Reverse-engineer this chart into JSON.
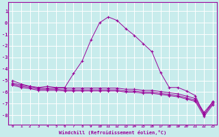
{
  "title": "",
  "xlabel": "Windchill (Refroidissement éolien,°C)",
  "ylabel": "",
  "bg_color": "#c8ecec",
  "line_color": "#990099",
  "grid_color": "#ffffff",
  "xlim": [
    -0.5,
    23.5
  ],
  "ylim": [
    -8.8,
    1.8
  ],
  "yticks": [
    1,
    0,
    -1,
    -2,
    -3,
    -4,
    -5,
    -6,
    -7,
    -8
  ],
  "xticks": [
    0,
    1,
    2,
    3,
    4,
    5,
    6,
    7,
    8,
    9,
    10,
    11,
    12,
    13,
    14,
    15,
    16,
    17,
    18,
    19,
    20,
    21,
    22,
    23
  ],
  "series": [
    [
      0,
      -5.0
    ],
    [
      1,
      -5.3
    ],
    [
      2,
      -5.5
    ],
    [
      3,
      -5.6
    ],
    [
      4,
      -5.5
    ],
    [
      5,
      -5.6
    ],
    [
      6,
      -5.6
    ],
    [
      7,
      -4.4
    ],
    [
      8,
      -3.3
    ],
    [
      9,
      -1.5
    ],
    [
      10,
      0.0
    ],
    [
      11,
      0.5
    ],
    [
      12,
      0.2
    ],
    [
      13,
      -0.5
    ],
    [
      14,
      -1.1
    ],
    [
      15,
      -1.8
    ],
    [
      16,
      -2.5
    ],
    [
      17,
      -4.3
    ],
    [
      18,
      -5.6
    ],
    [
      19,
      -5.6
    ],
    [
      20,
      -5.9
    ],
    [
      21,
      -6.3
    ],
    [
      22,
      -8.0
    ],
    [
      23,
      -6.8
    ]
  ],
  "series2": [
    [
      0,
      -5.2
    ],
    [
      1,
      -5.4
    ],
    [
      2,
      -5.5
    ],
    [
      3,
      -5.65
    ],
    [
      4,
      -5.65
    ],
    [
      5,
      -5.65
    ],
    [
      6,
      -5.65
    ],
    [
      7,
      -5.65
    ],
    [
      8,
      -5.65
    ],
    [
      9,
      -5.65
    ],
    [
      10,
      -5.65
    ],
    [
      11,
      -5.65
    ],
    [
      12,
      -5.65
    ],
    [
      13,
      -5.75
    ],
    [
      14,
      -5.75
    ],
    [
      15,
      -5.85
    ],
    [
      16,
      -5.85
    ],
    [
      17,
      -5.95
    ],
    [
      18,
      -6.05
    ],
    [
      19,
      -6.15
    ],
    [
      20,
      -6.35
    ],
    [
      21,
      -6.55
    ],
    [
      22,
      -7.75
    ],
    [
      23,
      -6.85
    ]
  ],
  "series3": [
    [
      0,
      -5.3
    ],
    [
      1,
      -5.5
    ],
    [
      2,
      -5.6
    ],
    [
      3,
      -5.75
    ],
    [
      4,
      -5.75
    ],
    [
      5,
      -5.75
    ],
    [
      6,
      -5.8
    ],
    [
      7,
      -5.8
    ],
    [
      8,
      -5.8
    ],
    [
      9,
      -5.8
    ],
    [
      10,
      -5.8
    ],
    [
      11,
      -5.8
    ],
    [
      12,
      -5.8
    ],
    [
      13,
      -5.9
    ],
    [
      14,
      -5.9
    ],
    [
      15,
      -6.0
    ],
    [
      16,
      -6.0
    ],
    [
      17,
      -6.1
    ],
    [
      18,
      -6.2
    ],
    [
      19,
      -6.3
    ],
    [
      20,
      -6.5
    ],
    [
      21,
      -6.7
    ],
    [
      22,
      -7.9
    ],
    [
      23,
      -7.0
    ]
  ],
  "series4": [
    [
      0,
      -5.4
    ],
    [
      1,
      -5.6
    ],
    [
      2,
      -5.7
    ],
    [
      3,
      -5.85
    ],
    [
      4,
      -5.85
    ],
    [
      5,
      -5.85
    ],
    [
      6,
      -5.9
    ],
    [
      7,
      -5.9
    ],
    [
      8,
      -5.9
    ],
    [
      9,
      -5.9
    ],
    [
      10,
      -5.9
    ],
    [
      11,
      -5.9
    ],
    [
      12,
      -5.9
    ],
    [
      13,
      -6.0
    ],
    [
      14,
      -6.0
    ],
    [
      15,
      -6.1
    ],
    [
      16,
      -6.1
    ],
    [
      17,
      -6.2
    ],
    [
      18,
      -6.3
    ],
    [
      19,
      -6.4
    ],
    [
      20,
      -6.6
    ],
    [
      21,
      -6.8
    ],
    [
      22,
      -8.1
    ],
    [
      23,
      -7.1
    ]
  ]
}
